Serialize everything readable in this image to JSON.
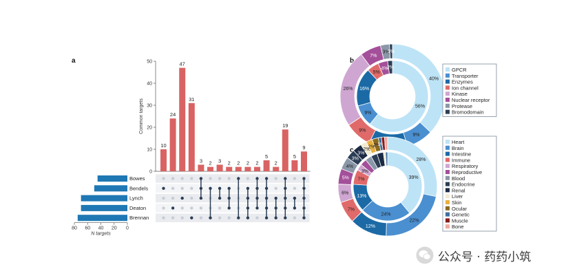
{
  "panel_a_label": "a",
  "panel_b_label": "b",
  "panel_c_label": "c",
  "watermark": "公众号 · 药药小筑",
  "chart_data": [
    {
      "type": "upset",
      "panel": "a",
      "ylabel": "Common targets",
      "ylim": [
        0,
        50
      ],
      "yticks": [
        0,
        10,
        20,
        30,
        40,
        50
      ],
      "values": [
        10,
        24,
        47,
        31,
        3,
        2,
        3,
        2,
        2,
        2,
        2,
        5,
        2,
        19,
        5,
        9
      ],
      "bar_color": "#d96363",
      "sets": [
        "Bowes",
        "Bendels",
        "Lynch",
        "Deaton",
        "Brennan"
      ],
      "set_sizes": [
        45,
        50,
        70,
        70,
        75
      ],
      "set_xlabel": "N targets",
      "set_xticks": [
        80,
        60,
        40,
        20,
        0
      ],
      "set_xlim": [
        0,
        80
      ],
      "set_bar_color": "#1f78b4",
      "intersections": [
        [
          1
        ],
        [
          3
        ],
        [
          2
        ],
        [
          4
        ],
        [
          0,
          1,
          2
        ],
        [
          1,
          4
        ],
        [
          1,
          2
        ],
        [
          1,
          2,
          3
        ],
        [
          0,
          4
        ],
        [
          1,
          2,
          3,
          4
        ],
        [
          0,
          1,
          2,
          3
        ],
        [
          0,
          1,
          2,
          3,
          4
        ],
        [
          2,
          3,
          4
        ],
        [
          0,
          1,
          2,
          3,
          4
        ],
        [
          2,
          3
        ],
        [
          0,
          1,
          2,
          3,
          4
        ]
      ]
    },
    {
      "type": "donut",
      "panel": "b",
      "categories": [
        "GPCR",
        "Transporter",
        "Enzymes",
        "Ion channel",
        "Kinase",
        "Nuclear receptor",
        "Protease",
        "Bromodomain"
      ],
      "colors": [
        "#bde3f6",
        "#4a8fd0",
        "#1b6aa6",
        "#e06a6a",
        "#cfa6d1",
        "#a44f9a",
        "#8a97a8",
        "#2c3e55"
      ],
      "outer_values": [
        40,
        9,
        13,
        9,
        26,
        7,
        3,
        1
      ],
      "outer_labels": [
        "40%",
        "9%",
        "13%",
        "9%",
        "26%",
        "7%",
        "3%",
        "1%"
      ],
      "inner_values": [
        56,
        9,
        16,
        5,
        0,
        4,
        0,
        2
      ],
      "inner_labels": [
        "56%",
        "9%",
        "16%",
        "5%",
        "",
        "4%",
        "",
        "2%"
      ]
    },
    {
      "type": "donut",
      "panel": "c",
      "categories": [
        "Heart",
        "Brain",
        "Intestine",
        "Immune",
        "Respiratory",
        "Reproductive",
        "Blood",
        "Endocrine",
        "Renal",
        "Liver",
        "Skin",
        "Ocular",
        "Genetic",
        "Muscle",
        "Bone"
      ],
      "colors": [
        "#bde3f6",
        "#4a8fd0",
        "#1b6aa6",
        "#e06a6a",
        "#cfa6d1",
        "#a44f9a",
        "#8a97a8",
        "#2c3e55",
        "#1c2a44",
        "#f3ead0",
        "#e8b040",
        "#8c6a1e",
        "#3d6fa0",
        "#8b1a1a",
        "#f0a8a0"
      ],
      "outer_values": [
        28,
        22,
        12,
        7,
        6,
        5,
        4,
        3,
        3,
        2,
        2,
        2,
        1,
        1,
        1
      ],
      "outer_labels": [
        "28%",
        "22%",
        "12%",
        "7%",
        "6%",
        "5%",
        "4%",
        "3%",
        "3%",
        "2%",
        "2%",
        "2%",
        "1%",
        "",
        ""
      ],
      "inner_values": [
        39,
        24,
        13,
        7,
        3,
        3,
        3,
        3,
        3,
        1,
        0,
        0,
        1,
        0,
        0
      ],
      "inner_labels": [
        "39%",
        "24%",
        "13%",
        "7%",
        "3%",
        "",
        "",
        "",
        "",
        "",
        "",
        "",
        "",
        "",
        ""
      ]
    }
  ]
}
